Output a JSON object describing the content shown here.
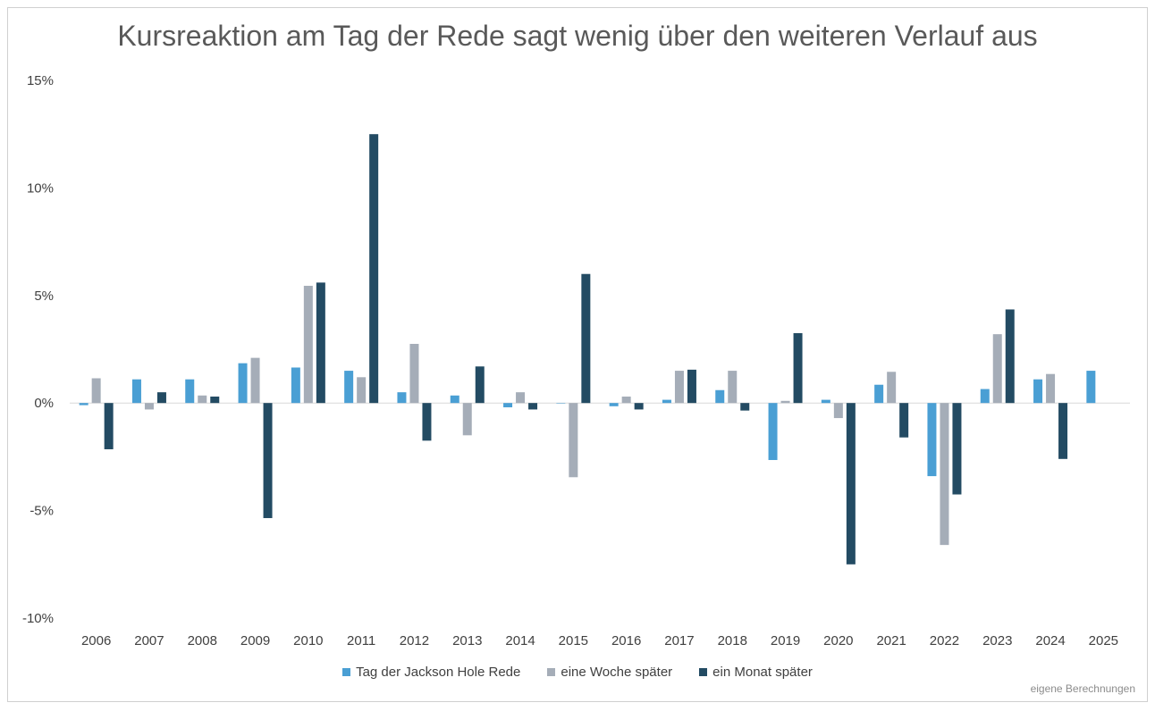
{
  "chart_data": {
    "type": "bar",
    "title": "Kursreaktion am Tag der Rede sagt wenig über den weiteren Verlauf aus",
    "categories": [
      "2006",
      "2007",
      "2008",
      "2009",
      "2010",
      "2011",
      "2012",
      "2013",
      "2014",
      "2015",
      "2016",
      "2017",
      "2018",
      "2019",
      "2020",
      "2021",
      "2022",
      "2023",
      "2024",
      "2025"
    ],
    "series": [
      {
        "name": "Tag der Jackson Hole Rede",
        "color": "#4a9fd4",
        "values": [
          -0.1,
          1.1,
          1.1,
          1.85,
          1.65,
          1.5,
          0.5,
          0.35,
          -0.2,
          0,
          -0.15,
          0.15,
          0.6,
          -2.65,
          0.15,
          0.85,
          -3.4,
          0.65,
          1.1,
          1.5
        ]
      },
      {
        "name": "eine Woche später",
        "color": "#a5adb8",
        "values": [
          1.15,
          -0.3,
          0.35,
          2.1,
          5.45,
          1.2,
          2.75,
          -1.5,
          0.5,
          -3.45,
          0.3,
          1.5,
          1.5,
          0.1,
          -0.7,
          1.45,
          -6.6,
          3.2,
          1.35,
          null
        ]
      },
      {
        "name": "ein Monat später",
        "color": "#234b63",
        "values": [
          -2.15,
          0.5,
          0.3,
          -5.35,
          5.6,
          12.5,
          -1.75,
          1.7,
          -0.3,
          6.0,
          -0.3,
          1.55,
          -0.35,
          3.25,
          -7.5,
          -1.6,
          -4.25,
          4.35,
          -2.6,
          null
        ]
      }
    ],
    "ylim": [
      -10,
      15
    ],
    "yticks": [
      -10,
      -5,
      0,
      5,
      10,
      15
    ],
    "ytick_labels": [
      "-10%",
      "-5%",
      "0%",
      "5%",
      "10%",
      "15%"
    ],
    "grid": false,
    "legend_position": "bottom",
    "source_note": "eigene Berechnungen"
  }
}
